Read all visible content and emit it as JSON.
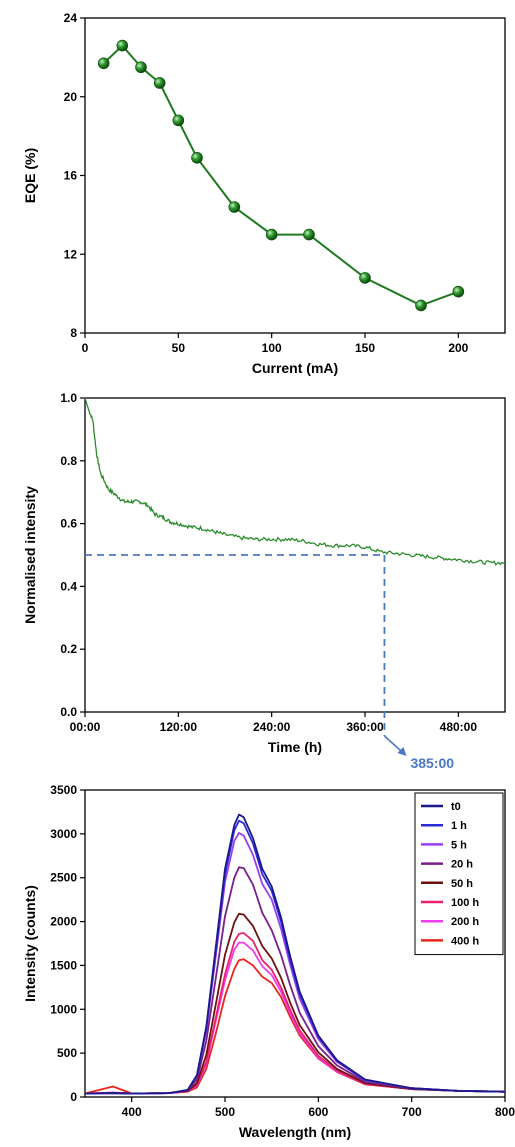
{
  "colors": {
    "eqe_series": "#1f7a1f",
    "decay_series": "#2e8b2e",
    "guide": "#4a78c4",
    "annotation": "#4a78c4"
  },
  "chart_data": [
    {
      "type": "scatter",
      "xlabel": "Current (mA)",
      "ylabel": "EQE (%)",
      "xlim": [
        0,
        225
      ],
      "ylim": [
        8,
        24
      ],
      "xticks": [
        0,
        50,
        100,
        150,
        200
      ],
      "yticks": [
        8,
        12,
        16,
        20,
        24
      ],
      "xtick_labels": [
        "0",
        "50",
        "100",
        "150",
        "200"
      ],
      "ytick_labels": [
        "8",
        "12",
        "16",
        "20",
        "24"
      ],
      "grid": false,
      "series": [
        {
          "x": [
            10,
            20,
            30,
            40,
            50,
            60,
            80,
            100,
            120,
            150,
            180,
            200
          ],
          "y": [
            21.7,
            22.6,
            21.5,
            20.7,
            18.8,
            16.9,
            14.4,
            13.0,
            13.0,
            10.8,
            9.4,
            10.1
          ]
        }
      ]
    },
    {
      "type": "line",
      "xlabel": "Time (h)",
      "ylabel": "Normalised intensity",
      "xlim": [
        0,
        540
      ],
      "ylim": [
        0,
        1.0
      ],
      "xticks": [
        0,
        120,
        240,
        360,
        480
      ],
      "yticks": [
        0,
        0.2,
        0.4,
        0.6,
        0.8,
        1.0
      ],
      "xtick_labels": [
        "00:00",
        "120:00",
        "240:00",
        "360:00",
        "480:00"
      ],
      "ytick_labels": [
        "0.0",
        "0.2",
        "0.4",
        "0.6",
        "0.8",
        "1.0"
      ],
      "grid": false,
      "series": [
        {
          "x": [
            0,
            5,
            10,
            15,
            20,
            30,
            40,
            50,
            60,
            70,
            80,
            90,
            100,
            110,
            120,
            135,
            150,
            165,
            180,
            200,
            220,
            240,
            260,
            280,
            300,
            320,
            340,
            360,
            380,
            400,
            420,
            440,
            460,
            480,
            500,
            520,
            540
          ],
          "y": [
            1.0,
            0.96,
            0.93,
            0.82,
            0.76,
            0.71,
            0.69,
            0.67,
            0.67,
            0.67,
            0.66,
            0.63,
            0.62,
            0.605,
            0.6,
            0.59,
            0.585,
            0.575,
            0.565,
            0.555,
            0.55,
            0.55,
            0.55,
            0.545,
            0.535,
            0.53,
            0.53,
            0.525,
            0.51,
            0.505,
            0.5,
            0.495,
            0.49,
            0.485,
            0.48,
            0.475,
            0.475
          ]
        }
      ],
      "reference": {
        "y": 0.5,
        "x": 385
      },
      "annotation": "385:00"
    },
    {
      "type": "line",
      "xlabel": "Wavelength (nm)",
      "ylabel": "Intensity (counts)",
      "xlim": [
        350,
        800
      ],
      "ylim": [
        0,
        3500
      ],
      "xticks": [
        400,
        500,
        600,
        700,
        800
      ],
      "yticks": [
        0,
        500,
        1000,
        1500,
        2000,
        2500,
        3000,
        3500
      ],
      "xtick_labels": [
        "400",
        "500",
        "600",
        "700",
        "800"
      ],
      "ytick_labels": [
        "0",
        "500",
        "1000",
        "1500",
        "2000",
        "2500",
        "3000",
        "3500"
      ],
      "legend": "top-right",
      "grid": false,
      "x": [
        350,
        380,
        400,
        440,
        460,
        470,
        480,
        490,
        500,
        510,
        515,
        520,
        530,
        540,
        550,
        560,
        570,
        580,
        600,
        620,
        650,
        700,
        750,
        800
      ],
      "series": [
        {
          "name": "t0",
          "color": "#1a1a8c",
          "values": [
            40,
            45,
            40,
            45,
            80,
            250,
            800,
            1700,
            2600,
            3100,
            3220,
            3190,
            2950,
            2600,
            2400,
            2050,
            1600,
            1200,
            700,
            420,
            200,
            100,
            70,
            60
          ]
        },
        {
          "name": "1 h",
          "color": "#2b2bd6",
          "values": [
            40,
            45,
            40,
            45,
            80,
            250,
            790,
            1660,
            2540,
            3040,
            3150,
            3120,
            2890,
            2540,
            2350,
            2000,
            1560,
            1170,
            690,
            410,
            195,
            100,
            70,
            60
          ]
        },
        {
          "name": "5 h",
          "color": "#9b3cf0",
          "values": [
            40,
            45,
            40,
            45,
            80,
            240,
            760,
            1600,
            2450,
            2920,
            3010,
            2980,
            2760,
            2430,
            2250,
            1920,
            1500,
            1120,
            660,
            400,
            190,
            100,
            70,
            60
          ]
        },
        {
          "name": "20 h",
          "color": "#7a1f8c",
          "values": [
            40,
            45,
            40,
            45,
            75,
            200,
            640,
            1350,
            2060,
            2500,
            2620,
            2610,
            2420,
            2100,
            1900,
            1620,
            1270,
            960,
            580,
            360,
            175,
            95,
            70,
            60
          ]
        },
        {
          "name": "50 h",
          "color": "#6b1212",
          "values": [
            40,
            45,
            40,
            45,
            70,
            160,
            480,
            1050,
            1620,
            1990,
            2090,
            2080,
            1950,
            1720,
            1580,
            1360,
            1070,
            820,
            510,
            320,
            160,
            90,
            70,
            60
          ]
        },
        {
          "name": "100 h",
          "color": "#e8206e",
          "values": [
            40,
            50,
            40,
            45,
            65,
            140,
            400,
            900,
            1400,
            1770,
            1860,
            1870,
            1780,
            1560,
            1450,
            1250,
            990,
            760,
            470,
            300,
            150,
            90,
            70,
            60
          ]
        },
        {
          "name": "200 h",
          "color": "#f03cf0",
          "values": [
            40,
            50,
            40,
            45,
            65,
            130,
            380,
            860,
            1330,
            1680,
            1760,
            1760,
            1670,
            1490,
            1390,
            1200,
            950,
            730,
            450,
            290,
            150,
            90,
            70,
            60
          ]
        },
        {
          "name": "400 h",
          "color": "#e8261e",
          "values": [
            40,
            120,
            40,
            45,
            60,
            110,
            320,
            720,
            1150,
            1460,
            1560,
            1570,
            1500,
            1370,
            1300,
            1140,
            910,
            700,
            440,
            285,
            145,
            90,
            70,
            60
          ]
        }
      ]
    }
  ]
}
